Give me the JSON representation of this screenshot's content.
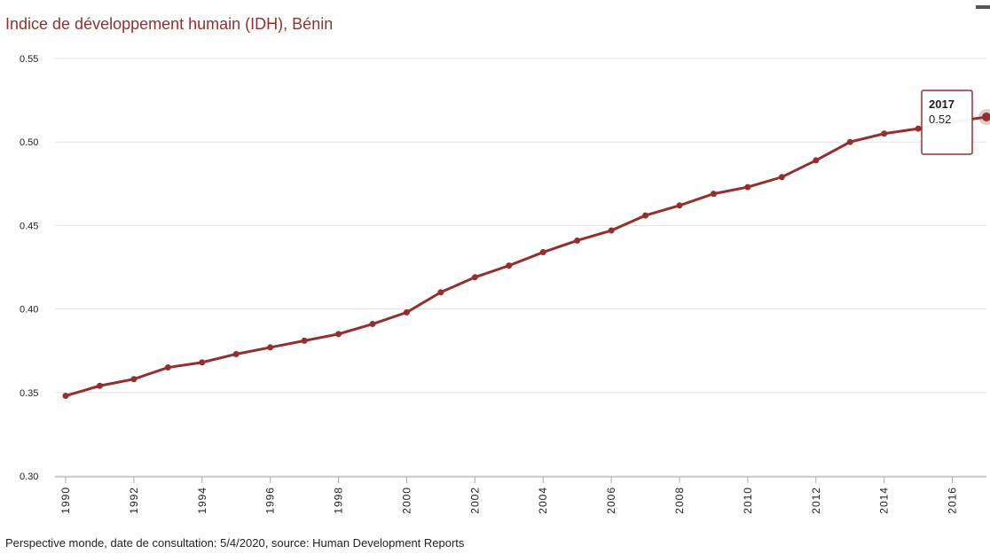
{
  "chart_data": {
    "type": "line",
    "title": "Indice de développement humain (IDH), Bénin",
    "footer": "Perspective monde, date de consultation: 5/4/2020, source: Human Development Reports",
    "x": [
      1990,
      1991,
      1992,
      1993,
      1994,
      1995,
      1996,
      1997,
      1998,
      1999,
      2000,
      2001,
      2002,
      2003,
      2004,
      2005,
      2006,
      2007,
      2008,
      2009,
      2010,
      2011,
      2012,
      2013,
      2014,
      2015,
      2016,
      2017
    ],
    "series": [
      {
        "name": "IDH",
        "color": "#93302f",
        "values": [
          0.348,
          0.354,
          0.358,
          0.365,
          0.368,
          0.373,
          0.377,
          0.381,
          0.385,
          0.391,
          0.398,
          0.41,
          0.419,
          0.426,
          0.434,
          0.441,
          0.447,
          0.456,
          0.462,
          0.469,
          0.473,
          0.479,
          0.489,
          0.5,
          0.505,
          0.508,
          0.512,
          0.515
        ]
      }
    ],
    "xlim": [
      1990,
      2017
    ],
    "xticks": [
      1990,
      1992,
      1994,
      1996,
      1998,
      2000,
      2002,
      2004,
      2006,
      2008,
      2010,
      2012,
      2014,
      2016
    ],
    "ylim": [
      0.3,
      0.55
    ],
    "yticks": [
      {
        "value": 0.3,
        "label": "0.30"
      },
      0.35,
      {
        "value": 0.4,
        "label": "0.40"
      },
      0.45,
      {
        "value": 0.5,
        "label": "0.50"
      },
      0.55
    ],
    "grid": true,
    "tooltip": {
      "x": 2017,
      "label": "0.52"
    }
  }
}
